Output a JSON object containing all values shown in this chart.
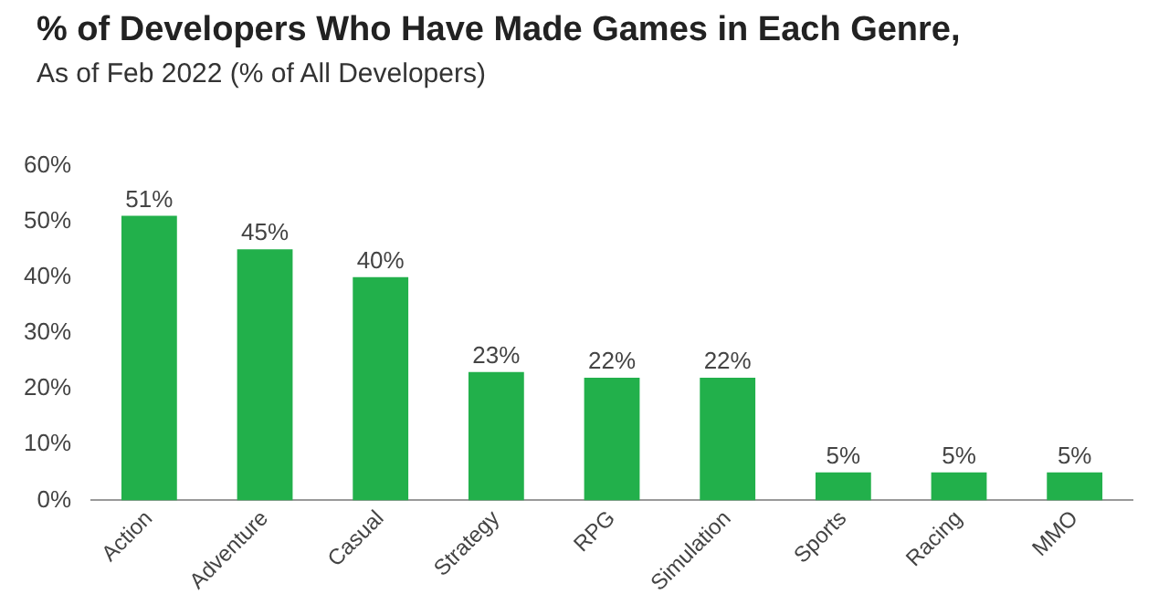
{
  "chart_data": {
    "type": "bar",
    "title": "% of Developers Who Have Made Games in Each Genre,",
    "subtitle": "As of Feb 2022 (% of All Developers)",
    "categories": [
      "Action",
      "Adventure",
      "Casual",
      "Strategy",
      "RPG",
      "Simulation",
      "Sports",
      "Racing",
      "MMO"
    ],
    "values": [
      51,
      45,
      40,
      23,
      22,
      22,
      5,
      5,
      5
    ],
    "value_labels": [
      "51%",
      "45%",
      "40%",
      "23%",
      "22%",
      "22%",
      "5%",
      "5%",
      "5%"
    ],
    "color": "#22b04b",
    "ylim": [
      0,
      60
    ],
    "yticks": [
      {
        "value": 0,
        "label": "0%"
      },
      {
        "value": 10,
        "label": "10%"
      },
      {
        "value": 20,
        "label": "20%"
      },
      {
        "value": 30,
        "label": "30%"
      },
      {
        "value": 40,
        "label": "40%"
      },
      {
        "value": 50,
        "label": "50%"
      },
      {
        "value": 60,
        "label": "60%"
      }
    ],
    "grid": false,
    "legend": false
  }
}
